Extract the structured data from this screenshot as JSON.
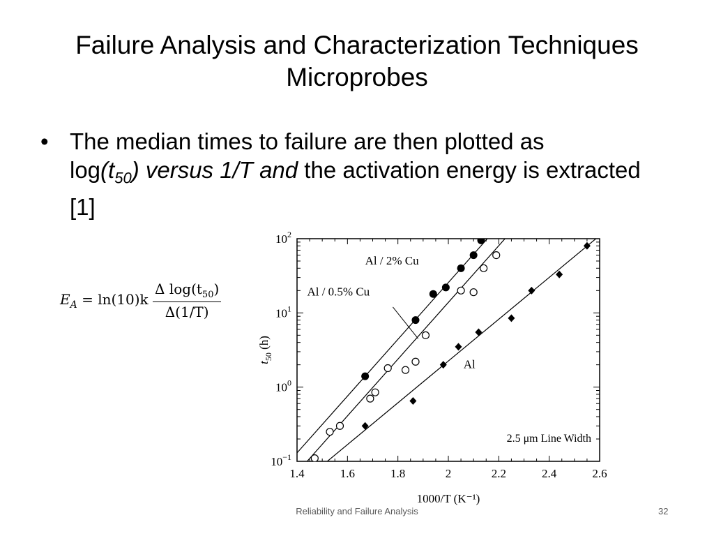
{
  "slide": {
    "title_line1": "Failure Analysis and Characterization Techniques",
    "title_line2": "Microprobes",
    "bullet_text_1": "The median times to failure are then plotted as",
    "bullet_text_2": "log",
    "bullet_italic_1": "(t",
    "bullet_sub": "50",
    "bullet_italic_2": ") versus 1/T and",
    "bullet_text_3": " the activation energy is extracted [1]",
    "footer": "Reliability and Failure Analysis",
    "page_number": "32"
  },
  "equation": {
    "lhs": "E",
    "lhs_sub": "A",
    "eq_middle": " = ln(10)k",
    "numerator": "Δ log(t",
    "numerator_sub": "50",
    "numerator_end": ")",
    "denominator": "Δ(1/T)"
  },
  "chart_data": {
    "type": "scatter",
    "xlabel": "1000/T (K⁻¹)",
    "ylabel": "t50 (h)",
    "xlim": [
      1.4,
      2.6
    ],
    "ylim": [
      0.1,
      100
    ],
    "yscale": "log",
    "x_ticks": [
      "1.4",
      "1.6",
      "1.8",
      "2",
      "2.2",
      "2.4",
      "2.6"
    ],
    "y_ticks": [
      {
        "base": "10",
        "exp": "2"
      },
      {
        "base": "10",
        "exp": "1"
      },
      {
        "base": "10",
        "exp": "0"
      },
      {
        "base": "10",
        "exp": "−1"
      }
    ],
    "annotation": "2.5 μm Line Width",
    "series": [
      {
        "name": "Al / 2% Cu",
        "marker": "filled-circle",
        "points": [
          [
            1.67,
            1.4
          ],
          [
            1.87,
            8
          ],
          [
            1.94,
            18
          ],
          [
            1.99,
            22
          ],
          [
            2.05,
            40
          ],
          [
            2.1,
            60
          ],
          [
            2.13,
            95
          ]
        ],
        "fit": [
          [
            1.4,
            0.13
          ],
          [
            2.18,
            125
          ]
        ]
      },
      {
        "name": "Al / 0.5% Cu",
        "marker": "open-circle",
        "points": [
          [
            1.47,
            0.11
          ],
          [
            1.53,
            0.25
          ],
          [
            1.57,
            0.3
          ],
          [
            1.69,
            0.7
          ],
          [
            1.71,
            0.85
          ],
          [
            1.76,
            1.8
          ],
          [
            1.83,
            1.7
          ],
          [
            1.87,
            2.2
          ],
          [
            1.91,
            5
          ],
          [
            2.05,
            20
          ],
          [
            2.1,
            19
          ],
          [
            2.14,
            40
          ],
          [
            2.19,
            60
          ]
        ],
        "fit": [
          [
            1.44,
            0.1
          ],
          [
            2.25,
            125
          ]
        ]
      },
      {
        "name": "Al",
        "marker": "filled-diamond",
        "points": [
          [
            1.67,
            0.3
          ],
          [
            1.86,
            0.65
          ],
          [
            1.98,
            2.0
          ],
          [
            2.04,
            3.5
          ],
          [
            2.12,
            5.5
          ],
          [
            2.25,
            8.5
          ],
          [
            2.33,
            20
          ],
          [
            2.44,
            33
          ],
          [
            2.55,
            80
          ]
        ],
        "fit": [
          [
            1.52,
            0.1
          ],
          [
            2.6,
            110
          ]
        ]
      }
    ]
  }
}
